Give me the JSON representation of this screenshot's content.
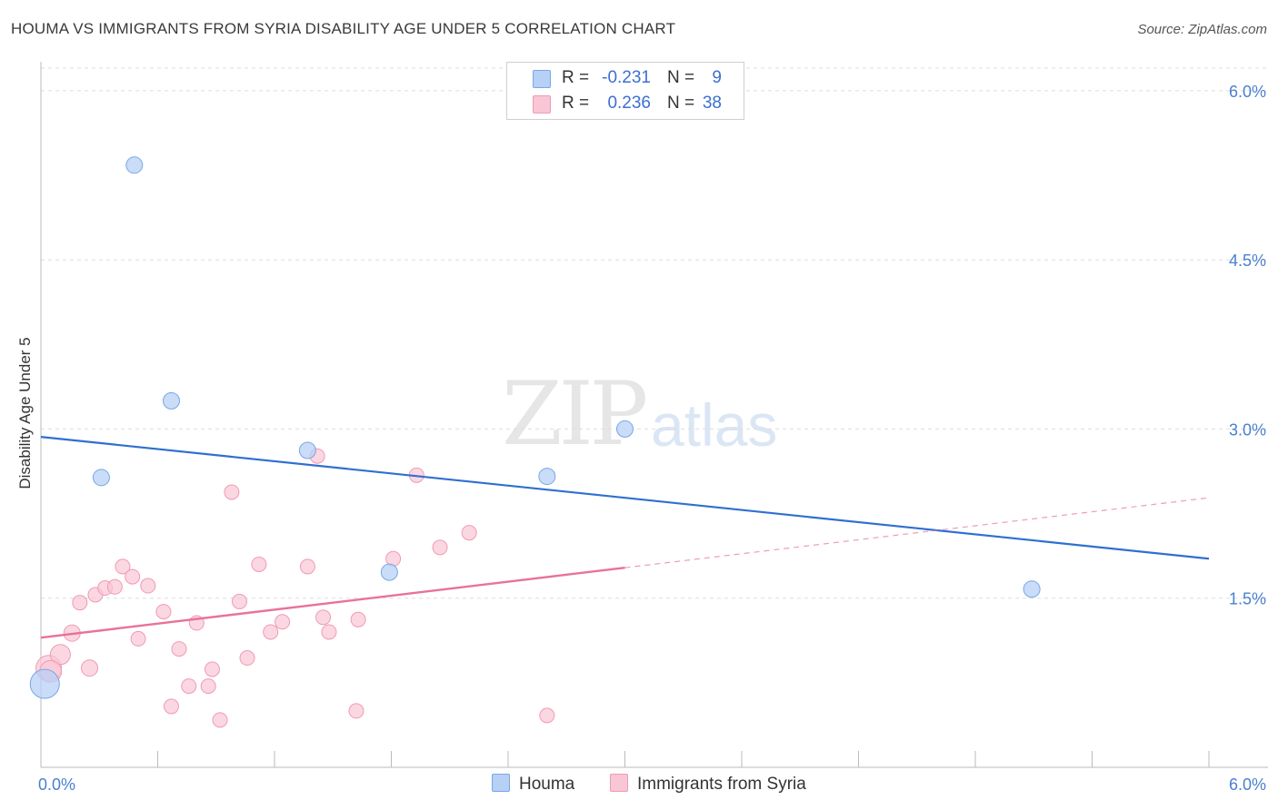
{
  "title": "HOUMA VS IMMIGRANTS FROM SYRIA DISABILITY AGE UNDER 5 CORRELATION CHART",
  "source": "Source: ZipAtlas.com",
  "watermark": {
    "zip": "ZIP",
    "atlas": "atlas"
  },
  "legend": {
    "houma": {
      "r_label": "R =",
      "r_value": "-0.231",
      "n_label": "N =",
      "n_value": "9"
    },
    "syria": {
      "r_label": "R =",
      "r_value": "0.236",
      "n_label": "N =",
      "n_value": "38"
    }
  },
  "bottom_legend": {
    "houma": "Houma",
    "syria": "Immigrants from Syria"
  },
  "colors": {
    "houma_fill": "#b7d0f5",
    "houma_stroke": "#7aa6e6",
    "houma_line": "#2f6fd0",
    "syria_fill": "#f9c6d5",
    "syria_stroke": "#f09ab5",
    "syria_line": "#e8729a",
    "tick_text": "#4a7fd0"
  },
  "chart_data": {
    "type": "scatter",
    "title": "HOUMA VS IMMIGRANTS FROM SYRIA DISABILITY AGE UNDER 5 CORRELATION CHART",
    "xlabel": "",
    "ylabel": "Disability Age Under 5",
    "xlim": [
      0,
      6.0
    ],
    "ylim": [
      0,
      6.2
    ],
    "x_tick_labels": [
      "0.0%",
      "6.0%"
    ],
    "y_ticks": [
      1.5,
      3.0,
      4.5,
      6.0
    ],
    "y_tick_labels": [
      "1.5%",
      "3.0%",
      "4.5%",
      "6.0%"
    ],
    "grid": true,
    "series": [
      {
        "name": "Houma",
        "points": [
          [
            0.02,
            0.74,
            16
          ],
          [
            0.31,
            2.57,
            9
          ],
          [
            0.48,
            5.34,
            9
          ],
          [
            0.67,
            3.25,
            9
          ],
          [
            1.37,
            2.81,
            9
          ],
          [
            1.79,
            1.73,
            9
          ],
          [
            2.6,
            2.58,
            9
          ],
          [
            3.0,
            3.0,
            9
          ],
          [
            5.09,
            1.58,
            9
          ]
        ],
        "trend": {
          "x": [
            0.0,
            6.0
          ],
          "y": [
            2.93,
            1.85
          ]
        }
      },
      {
        "name": "Immigrants from Syria",
        "points": [
          [
            0.04,
            0.88,
            14
          ],
          [
            0.1,
            1.0,
            11
          ],
          [
            0.16,
            1.19,
            9
          ],
          [
            0.2,
            1.46,
            8
          ],
          [
            0.25,
            0.88,
            9
          ],
          [
            0.28,
            1.53,
            8
          ],
          [
            0.33,
            1.59,
            8
          ],
          [
            0.38,
            1.6,
            8
          ],
          [
            0.42,
            1.78,
            8
          ],
          [
            0.47,
            1.69,
            8
          ],
          [
            0.5,
            1.14,
            8
          ],
          [
            0.55,
            1.61,
            8
          ],
          [
            0.63,
            1.38,
            8
          ],
          [
            0.67,
            0.54,
            8
          ],
          [
            0.71,
            1.05,
            8
          ],
          [
            0.76,
            0.72,
            8
          ],
          [
            0.8,
            1.28,
            8
          ],
          [
            0.86,
            0.72,
            8
          ],
          [
            0.88,
            0.87,
            8
          ],
          [
            0.92,
            0.42,
            8
          ],
          [
            0.98,
            2.44,
            8
          ],
          [
            1.02,
            1.47,
            8
          ],
          [
            1.06,
            0.97,
            8
          ],
          [
            1.12,
            1.8,
            8
          ],
          [
            1.18,
            1.2,
            8
          ],
          [
            1.24,
            1.29,
            8
          ],
          [
            1.37,
            1.78,
            8
          ],
          [
            1.42,
            2.76,
            8
          ],
          [
            1.45,
            1.33,
            8
          ],
          [
            1.48,
            1.2,
            8
          ],
          [
            1.62,
            0.5,
            8
          ],
          [
            1.63,
            1.31,
            8
          ],
          [
            1.81,
            1.85,
            8
          ],
          [
            1.93,
            2.59,
            8
          ],
          [
            2.05,
            1.95,
            8
          ],
          [
            2.2,
            2.08,
            8
          ],
          [
            2.6,
            0.46,
            8
          ],
          [
            0.05,
            0.85,
            12
          ]
        ],
        "trend": {
          "x": [
            0.0,
            3.0
          ],
          "y": [
            1.15,
            1.77
          ]
        },
        "trend_dashed": {
          "x": [
            3.0,
            6.0
          ],
          "y": [
            1.77,
            2.39
          ]
        }
      }
    ]
  }
}
